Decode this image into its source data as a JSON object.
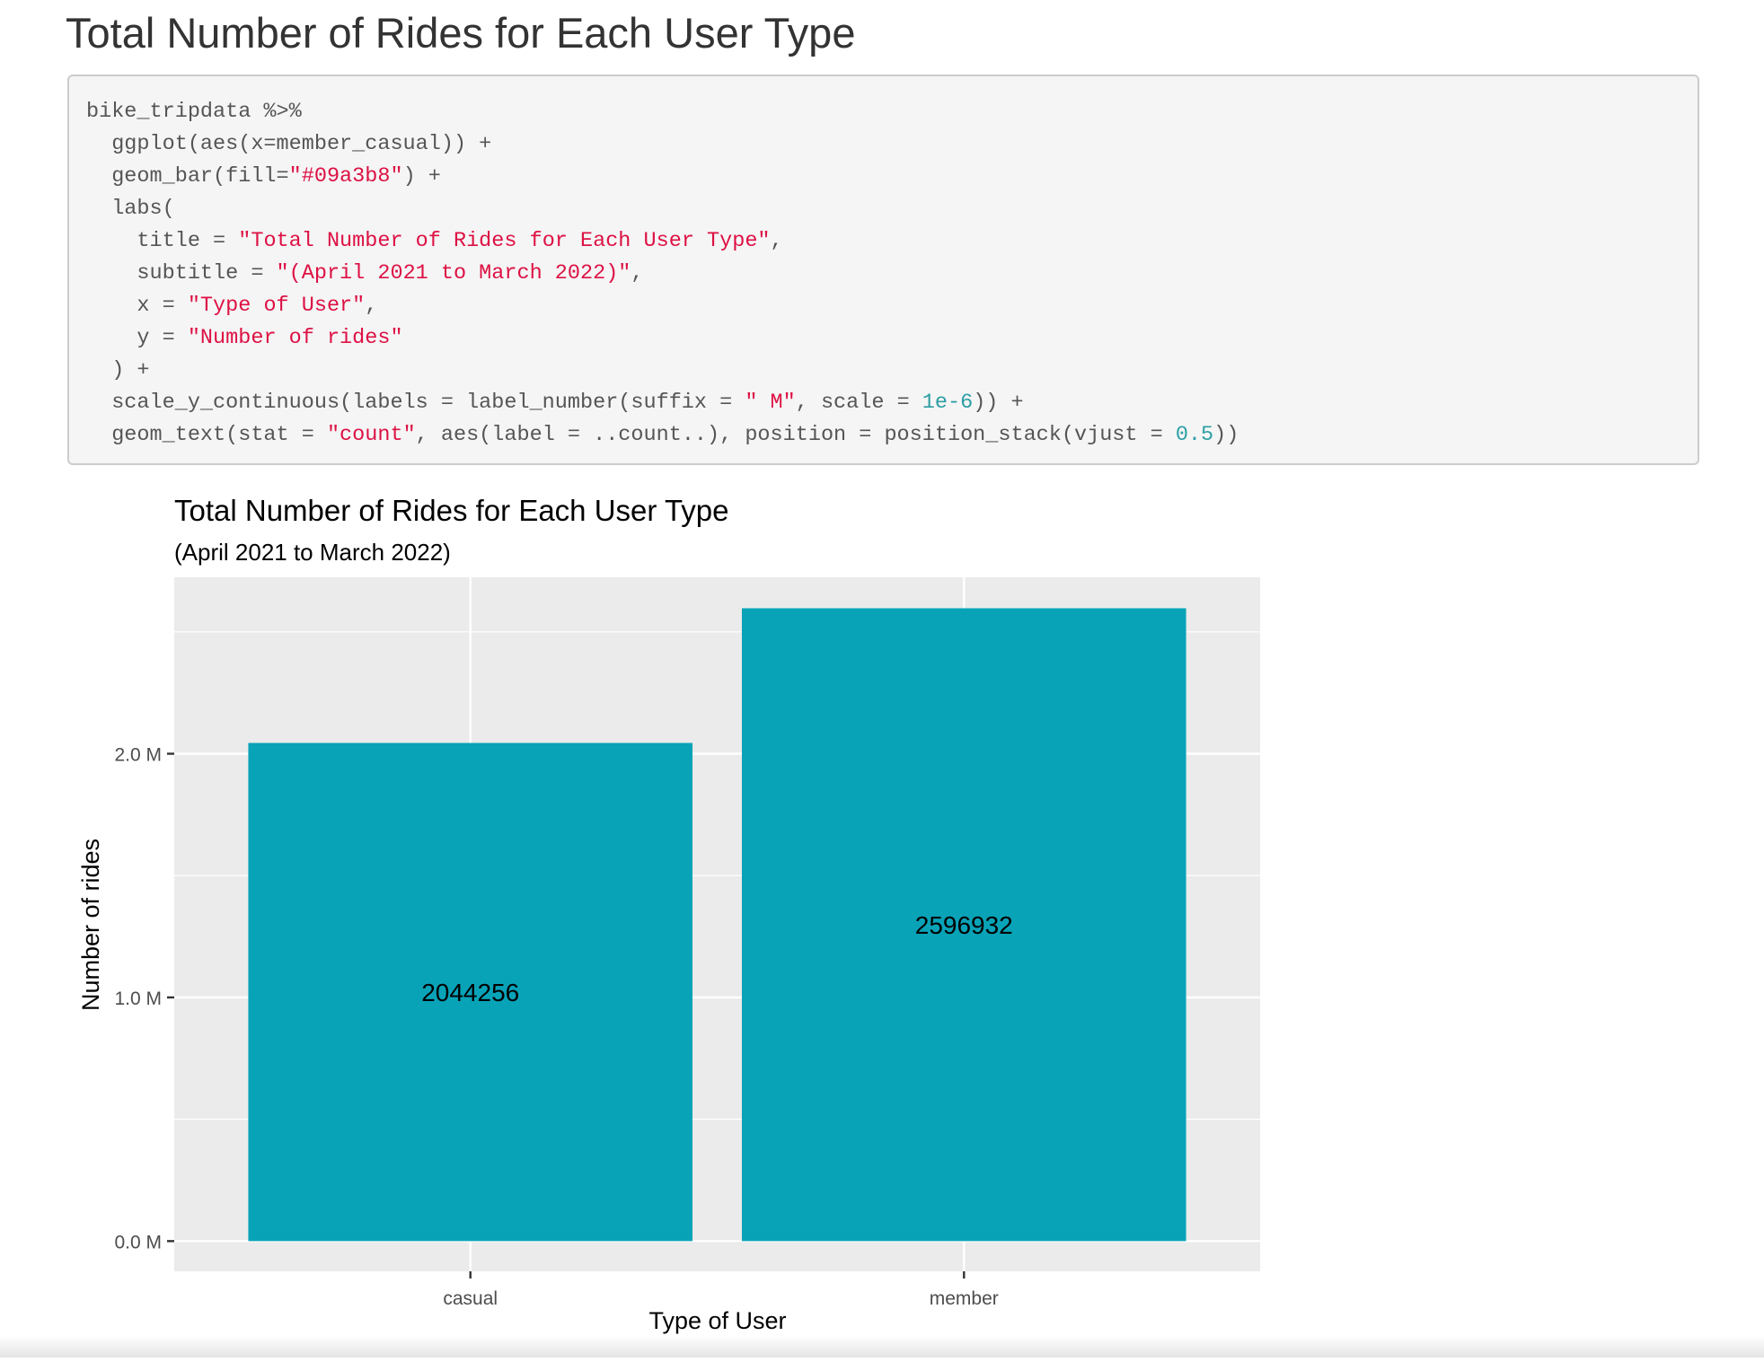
{
  "page": {
    "heading": "Total Number of Rides for Each User Type"
  },
  "code": {
    "lines": [
      [
        {
          "t": "plain",
          "v": "bike_tripdata %>%"
        }
      ],
      [
        {
          "t": "plain",
          "v": "  ggplot(aes(x=member_casual)) +"
        }
      ],
      [
        {
          "t": "plain",
          "v": "  geom_bar(fill="
        },
        {
          "t": "str",
          "v": "\"#09a3b8\""
        },
        {
          "t": "plain",
          "v": ") +"
        }
      ],
      [
        {
          "t": "plain",
          "v": "  labs("
        }
      ],
      [
        {
          "t": "plain",
          "v": "    title = "
        },
        {
          "t": "str",
          "v": "\"Total Number of Rides for Each User Type\""
        },
        {
          "t": "plain",
          "v": ","
        }
      ],
      [
        {
          "t": "plain",
          "v": "    subtitle = "
        },
        {
          "t": "str",
          "v": "\"(April 2021 to March 2022)\""
        },
        {
          "t": "plain",
          "v": ","
        }
      ],
      [
        {
          "t": "plain",
          "v": "    x = "
        },
        {
          "t": "str",
          "v": "\"Type of User\""
        },
        {
          "t": "plain",
          "v": ","
        }
      ],
      [
        {
          "t": "plain",
          "v": "    y = "
        },
        {
          "t": "str",
          "v": "\"Number of rides\""
        }
      ],
      [
        {
          "t": "plain",
          "v": "  ) +"
        }
      ],
      [
        {
          "t": "plain",
          "v": "  scale_y_continuous(labels = label_number(suffix = "
        },
        {
          "t": "str",
          "v": "\" M\""
        },
        {
          "t": "plain",
          "v": ", scale = "
        },
        {
          "t": "num",
          "v": "1e-6"
        },
        {
          "t": "plain",
          "v": ")) +"
        }
      ],
      [
        {
          "t": "plain",
          "v": "  geom_text(stat = "
        },
        {
          "t": "str",
          "v": "\"count\""
        },
        {
          "t": "plain",
          "v": ", aes(label = ..count..), position = position_stack(vjust = "
        },
        {
          "t": "num",
          "v": "0.5"
        },
        {
          "t": "plain",
          "v": "))"
        }
      ]
    ]
  },
  "colors": {
    "bar_fill": "#09a3b8",
    "panel_bg": "#ebebeb",
    "grid": "#ffffff",
    "code_string": "#dd1144",
    "code_number": "#2b9ea3"
  },
  "chart_data": {
    "type": "bar",
    "title": "Total Number of Rides for Each User Type",
    "subtitle": "(April 2021 to March 2022)",
    "xlabel": "Type of User",
    "ylabel": "Number of rides",
    "categories": [
      "casual",
      "member"
    ],
    "values": [
      2044256,
      2596932
    ],
    "data_labels": [
      "2044256",
      "2596932"
    ],
    "ylim": [
      -124000,
      2724000
    ],
    "yticks": [
      0,
      1000000,
      2000000
    ],
    "ytick_labels": [
      "0.0 M",
      "1.0 M",
      "2.0 M"
    ],
    "grid": true,
    "legend": "none"
  }
}
